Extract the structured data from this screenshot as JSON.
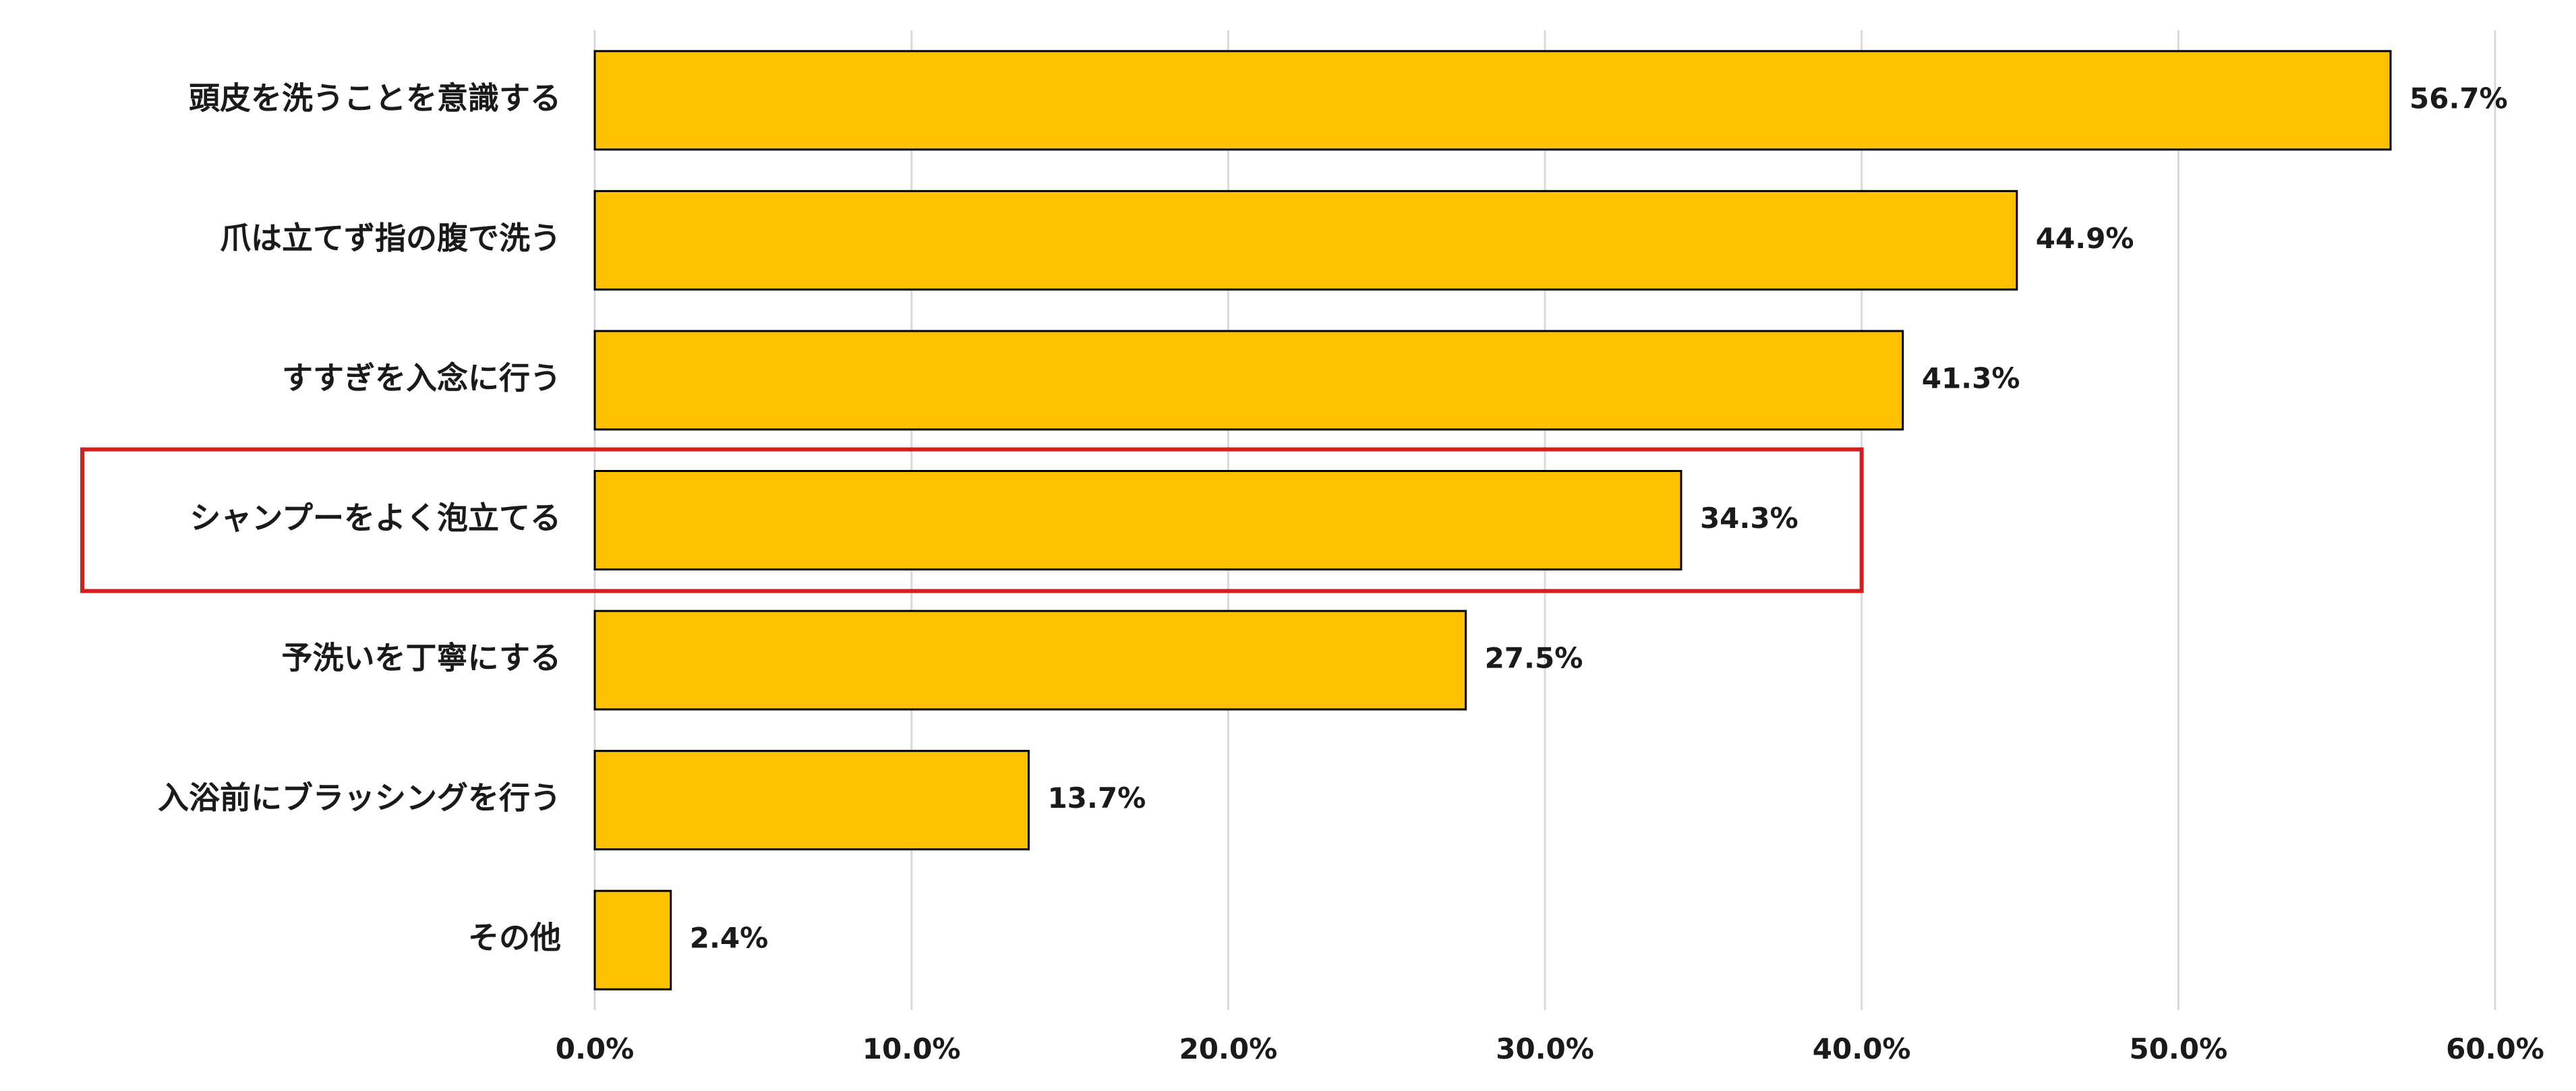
{
  "chart_data": {
    "type": "bar",
    "orientation": "horizontal",
    "categories": [
      "頭皮を洗うことを意識する",
      "爪は立てず指の腹で洗う",
      "すすぎを入念に行う",
      "シャンプーをよく泡立てる",
      "予洗いを丁寧にする",
      "入浴前にブラッシングを行う",
      "その他"
    ],
    "values": [
      56.7,
      44.9,
      41.3,
      34.3,
      27.5,
      13.7,
      2.4
    ],
    "value_labels": [
      "56.7%",
      "44.9%",
      "41.3%",
      "34.3%",
      "27.5%",
      "13.7%",
      "2.4%"
    ],
    "xlim": [
      0,
      60
    ],
    "x_ticks": [
      0,
      10,
      20,
      30,
      40,
      50,
      60
    ],
    "x_tick_labels": [
      "0.0%",
      "10.0%",
      "20.0%",
      "30.0%",
      "40.0%",
      "50.0%",
      "60.0%"
    ],
    "grid": "vertical",
    "highlighted_category_index": 3,
    "colors": {
      "bar_fill": "#FFC000",
      "bar_stroke": "#000000",
      "grid": "#d9d9d9",
      "highlight_box": "#d02020"
    }
  }
}
